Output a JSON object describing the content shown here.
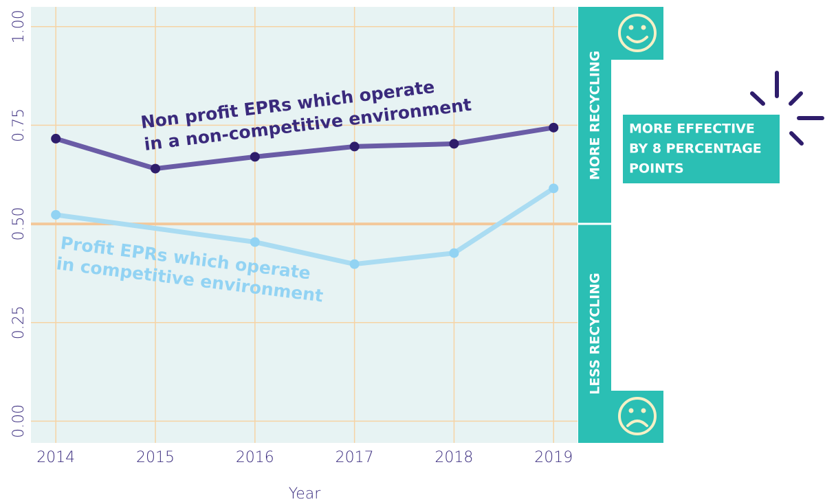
{
  "chart_data": {
    "type": "line",
    "x_label": "Year",
    "xlim": [
      2013.75,
      2019.24
    ],
    "xticks": [
      2014,
      2015,
      2016,
      2017,
      2018,
      2019
    ],
    "ylim": [
      -0.055,
      1.05
    ],
    "yticks": [
      {
        "value": 0,
        "label": "0.00"
      },
      {
        "value": 0.25,
        "label": "0.25"
      },
      {
        "value": 0.5,
        "label": "0.50"
      },
      {
        "value": 0.75,
        "label": "0.75"
      },
      {
        "value": 1,
        "label": "1.00"
      }
    ],
    "grid": true,
    "hline": 0.5,
    "series": [
      {
        "label": [
          "Non profit EPRs which operate",
          "in a non-competitive environment"
        ],
        "color": "#6a5ca6",
        "marker_color": "#2e1d6b",
        "x": [
          2014,
          2015,
          2016,
          2017,
          2018,
          2019
        ],
        "values": [
          0.716,
          0.64,
          0.67,
          0.696,
          0.703,
          0.744
        ]
      },
      {
        "label": [
          "Profit EPRs which operate",
          "in competitive environment"
        ],
        "color": "#aadcf2",
        "marker_color": "#92d3f3",
        "x": [
          2014,
          2016,
          2017,
          2018,
          2019
        ],
        "values": [
          0.523,
          0.454,
          0.398,
          0.426,
          0.59
        ]
      }
    ],
    "side_labels": {
      "top": "MORE RECYCLING",
      "bottom": "LESS RECYCLING"
    },
    "callout": [
      "MORE EFFECTIVE",
      "BY 8 PERCENTAGE",
      "POINTS"
    ]
  }
}
